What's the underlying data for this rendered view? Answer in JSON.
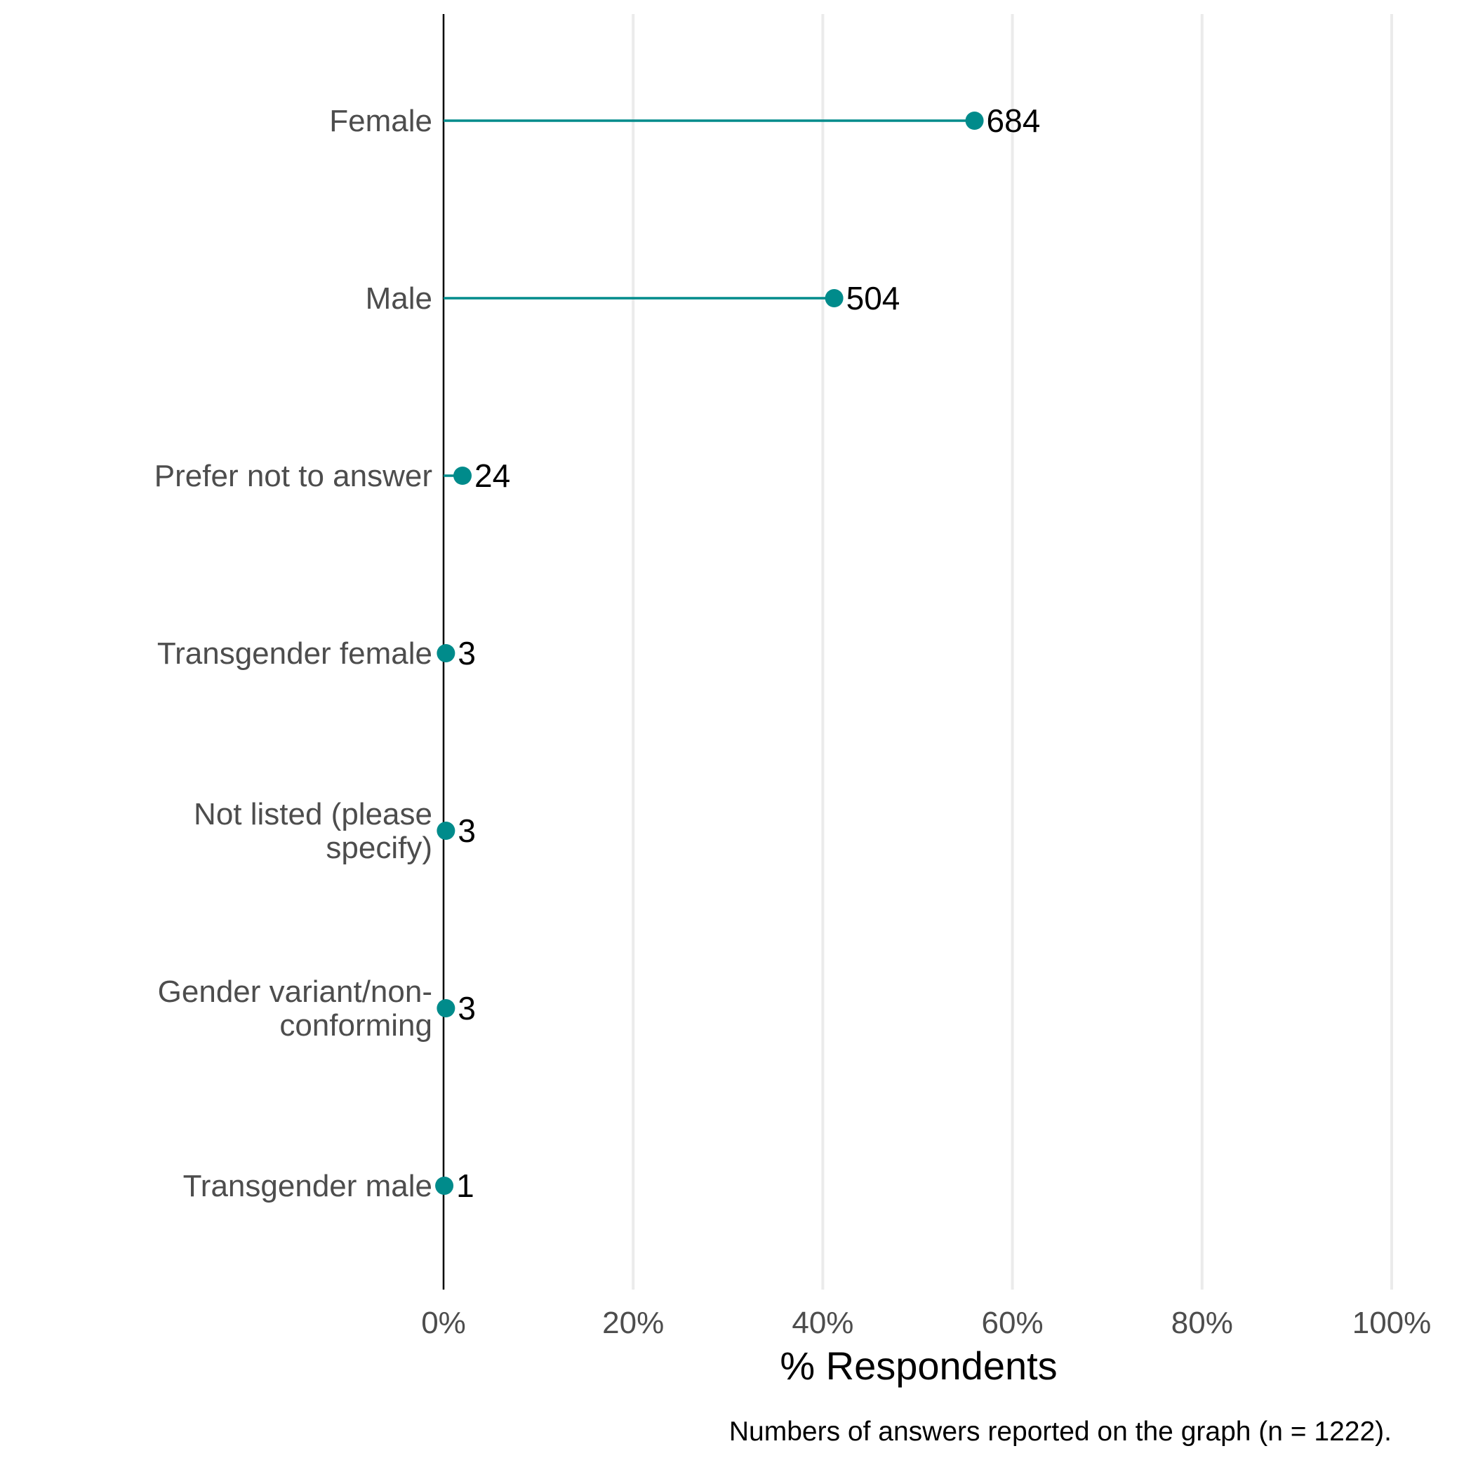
{
  "chart_data": {
    "type": "lollipop",
    "categories": [
      [
        "Female"
      ],
      [
        "Male"
      ],
      [
        "Prefer not to answer"
      ],
      [
        "Transgender female"
      ],
      [
        "Not listed (please",
        "specify)"
      ],
      [
        "Gender variant/non-",
        "conforming"
      ],
      [
        "Transgender male"
      ]
    ],
    "counts": [
      684,
      504,
      24,
      3,
      3,
      3,
      1
    ],
    "percent": [
      56.0,
      41.2,
      2.0,
      0.25,
      0.25,
      0.25,
      0.08
    ],
    "value_labels": [
      "684",
      "504",
      "24",
      "3",
      "3",
      "3",
      "1"
    ],
    "xlim": [
      0,
      100
    ],
    "xticks": [
      0,
      20,
      40,
      60,
      80,
      100
    ],
    "xtick_labels": [
      "0%",
      "20%",
      "40%",
      "60%",
      "80%",
      "100%"
    ],
    "xlabel": "% Respondents",
    "caption": "Numbers of answers reported on the graph (n = 1222).",
    "grid": "vertical-major",
    "colors": {
      "point": "#008b8b",
      "segment": "#008b8b",
      "grid": "#ebebeb",
      "axis": "#000000"
    }
  }
}
